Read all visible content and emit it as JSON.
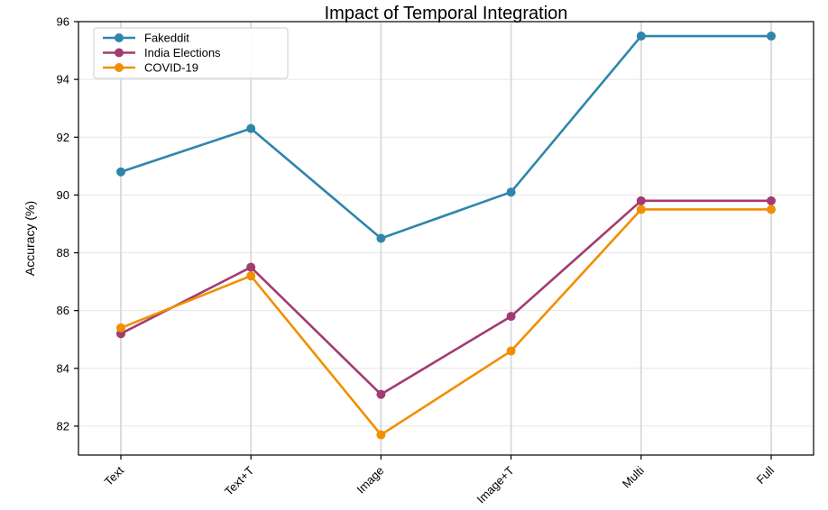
{
  "chart_data": {
    "type": "line",
    "title": "Impact of Temporal Integration",
    "xlabel": "",
    "ylabel": "Accuracy (%)",
    "categories": [
      "Text",
      "Text+T",
      "Image",
      "Image+T",
      "Multi",
      "Full"
    ],
    "ylim": [
      81,
      96
    ],
    "yticks": [
      82,
      84,
      86,
      88,
      90,
      92,
      94,
      96
    ],
    "grid": true,
    "legend": "top-left",
    "series": [
      {
        "name": "Fakeddit",
        "color": "#2e86ab",
        "values": [
          90.8,
          92.3,
          88.5,
          90.1,
          95.5,
          95.5
        ]
      },
      {
        "name": "India Elections",
        "color": "#a23b72",
        "values": [
          85.2,
          87.5,
          83.1,
          85.8,
          89.8,
          89.8
        ]
      },
      {
        "name": "COVID-19",
        "color": "#f18f01",
        "values": [
          85.4,
          87.2,
          81.7,
          84.6,
          89.5,
          89.5
        ]
      }
    ]
  }
}
